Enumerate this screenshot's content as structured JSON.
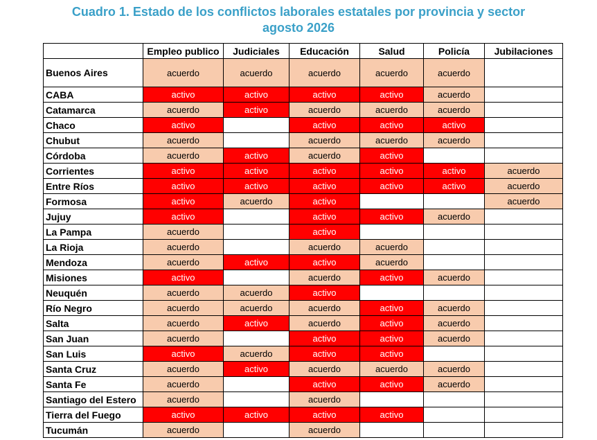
{
  "title_line1": "Cuadro 1. Estado de los conflictos laborales estatales por provincia y sector",
  "title_line2": "agosto 2026",
  "colors": {
    "acuerdo": "#f8cbad",
    "activo": "#ff0000",
    "title": "#3aa0c8"
  },
  "columns": [
    "",
    "Empleo publico",
    "Judiciales",
    "Educación",
    "Salud",
    "Policía",
    "Jubilaciones"
  ],
  "rows": [
    {
      "province": "Buenos Aires",
      "cells": [
        "acuerdo",
        "acuerdo",
        "acuerdo",
        "acuerdo",
        "acuerdo",
        ""
      ]
    },
    {
      "province": "CABA",
      "cells": [
        "activo",
        "activo",
        "activo",
        "activo",
        "acuerdo",
        ""
      ]
    },
    {
      "province": "Catamarca",
      "cells": [
        "acuerdo",
        "activo",
        "acuerdo",
        "acuerdo",
        "acuerdo",
        ""
      ]
    },
    {
      "province": "Chaco",
      "cells": [
        "activo",
        "",
        "activo",
        "activo",
        "activo",
        ""
      ]
    },
    {
      "province": "Chubut",
      "cells": [
        "acuerdo",
        "",
        "acuerdo",
        "acuerdo",
        "acuerdo",
        ""
      ]
    },
    {
      "province": "Córdoba",
      "cells": [
        "acuerdo",
        "activo",
        "acuerdo",
        "activo",
        "",
        ""
      ]
    },
    {
      "province": "Corrientes",
      "cells": [
        "activo",
        "activo",
        "activo",
        "activo",
        "activo",
        "acuerdo"
      ]
    },
    {
      "province": "Entre Ríos",
      "cells": [
        "activo",
        "activo",
        "activo",
        "activo",
        "activo",
        "acuerdo"
      ]
    },
    {
      "province": "Formosa",
      "cells": [
        "activo",
        "acuerdo",
        "activo",
        "",
        "",
        "acuerdo"
      ]
    },
    {
      "province": "Jujuy",
      "cells": [
        "activo",
        "",
        "activo",
        "activo",
        "acuerdo",
        ""
      ]
    },
    {
      "province": "La Pampa",
      "cells": [
        "acuerdo",
        "",
        "activo",
        "",
        "",
        ""
      ]
    },
    {
      "province": "La Rioja",
      "cells": [
        "acuerdo",
        "",
        "acuerdo",
        "acuerdo",
        "",
        ""
      ]
    },
    {
      "province": "Mendoza",
      "cells": [
        "acuerdo",
        "activo",
        "activo",
        "acuerdo",
        "",
        ""
      ]
    },
    {
      "province": "Misiones",
      "cells": [
        "activo",
        "",
        "acuerdo",
        "activo",
        "acuerdo",
        ""
      ]
    },
    {
      "province": "Neuquén",
      "cells": [
        "acuerdo",
        "acuerdo",
        "activo",
        "",
        "",
        ""
      ]
    },
    {
      "province": "Río Negro",
      "cells": [
        "acuerdo",
        "acuerdo",
        "acuerdo",
        "activo",
        "acuerdo",
        ""
      ]
    },
    {
      "province": "Salta",
      "cells": [
        "acuerdo",
        "activo",
        "acuerdo",
        "activo",
        "acuerdo",
        ""
      ]
    },
    {
      "province": "San Juan",
      "cells": [
        "acuerdo",
        "",
        "activo",
        "activo",
        "acuerdo",
        ""
      ]
    },
    {
      "province": "San Luis",
      "cells": [
        "activo",
        "acuerdo",
        "activo",
        "activo",
        "",
        ""
      ]
    },
    {
      "province": "Santa Cruz",
      "cells": [
        "acuerdo",
        "activo",
        "acuerdo",
        "acuerdo",
        "acuerdo",
        ""
      ]
    },
    {
      "province": "Santa Fe",
      "cells": [
        "acuerdo",
        "",
        "activo",
        "activo",
        "acuerdo",
        ""
      ]
    },
    {
      "province": "Santiago del Estero",
      "cells": [
        "acuerdo",
        "",
        "acuerdo",
        "",
        "",
        ""
      ]
    },
    {
      "province": "Tierra del Fuego",
      "cells": [
        "activo",
        "activo",
        "activo",
        "activo",
        "",
        ""
      ]
    },
    {
      "province": "Tucumán",
      "cells": [
        "acuerdo",
        "",
        "acuerdo",
        "",
        "",
        ""
      ]
    }
  ]
}
